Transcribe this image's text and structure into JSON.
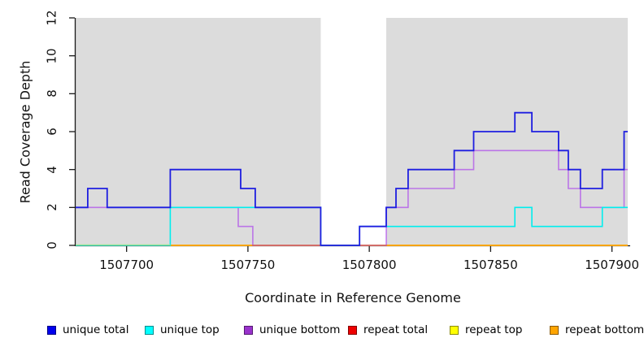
{
  "chart_data": {
    "type": "line",
    "subtype": "step-coverage-plot",
    "title": "",
    "xlabel": "Coordinate in Reference Genome",
    "ylabel": "Read Coverage Depth",
    "xlim": [
      1507679,
      1507906.5
    ],
    "ylim": [
      0,
      12
    ],
    "x_ticks": [
      1507700,
      1507750,
      1507800,
      1507850,
      1507900
    ],
    "x_tick_labels": [
      "1507700",
      "1507750",
      "1507800",
      "1507850",
      "1507900"
    ],
    "y_ticks": [
      0,
      2,
      4,
      6,
      8,
      10,
      12
    ],
    "y_tick_labels": [
      "0",
      "2",
      "4",
      "6",
      "8",
      "10",
      "12"
    ],
    "grid": "off",
    "legend_position": "bottom",
    "shade_color": "#dcdcdc",
    "shaded_regions": [
      {
        "name": "left-shaded-region",
        "x0": 1507679,
        "x1": 1507780
      },
      {
        "name": "right-shaded-region",
        "x0": 1507807,
        "x1": 1507906.5
      }
    ],
    "zero_line_blend": {
      "note": "light-green segment on the zero line left of 1507718",
      "x0": 1507679,
      "x1": 1507718,
      "y": 0,
      "color": "#98e698"
    },
    "series": [
      {
        "name": "repeat total",
        "color": "#ee0000",
        "line_color": "#ee0000",
        "line_opacity": 1,
        "steps": [
          [
            1507718,
            0
          ]
        ],
        "x_end": 1507906.5
      },
      {
        "name": "repeat top",
        "color": "#ffff00",
        "line_color": "#ffff00",
        "line_opacity": 1,
        "steps": [
          [
            1507718,
            0
          ]
        ],
        "x_end": 1507906.5
      },
      {
        "name": "repeat bottom",
        "color": "#ffa500",
        "line_color": "#ffa500",
        "line_opacity": 1,
        "steps": [
          [
            1507718,
            0
          ]
        ],
        "x_end": 1507906.5
      },
      {
        "name": "unique bottom",
        "color": "#9932cc",
        "line_color": "#a020f0",
        "line_opacity": 0.55,
        "steps": [
          [
            1507679,
            2
          ],
          [
            1507746,
            1
          ],
          [
            1507752,
            0
          ],
          [
            1507807,
            2
          ],
          [
            1507816,
            3
          ],
          [
            1507835,
            4
          ],
          [
            1507843,
            5
          ],
          [
            1507878,
            4
          ],
          [
            1507882,
            3
          ],
          [
            1507887,
            2
          ],
          [
            1507905,
            4
          ]
        ],
        "x_end": 1507906.5
      },
      {
        "name": "unique top",
        "color": "#00ffff",
        "line_color": "#00eeee",
        "line_opacity": 1,
        "steps": [
          [
            1507679,
            0
          ],
          [
            1507718,
            2
          ],
          [
            1507780,
            0
          ],
          [
            1507796,
            1
          ],
          [
            1507860,
            2
          ],
          [
            1507867,
            1
          ],
          [
            1507896,
            2
          ]
        ],
        "x_end": 1507906.5
      },
      {
        "name": "unique total",
        "color": "#0000ee",
        "line_color": "#1e1ee0",
        "line_opacity": 1,
        "steps": [
          [
            1507679,
            2
          ],
          [
            1507684,
            3
          ],
          [
            1507692,
            2
          ],
          [
            1507718,
            4
          ],
          [
            1507747,
            3
          ],
          [
            1507753,
            2
          ],
          [
            1507780,
            0
          ],
          [
            1507796,
            1
          ],
          [
            1507807,
            2
          ],
          [
            1507811,
            3
          ],
          [
            1507816,
            4
          ],
          [
            1507835,
            5
          ],
          [
            1507843,
            6
          ],
          [
            1507860,
            7
          ],
          [
            1507867,
            6
          ],
          [
            1507878,
            5
          ],
          [
            1507882,
            4
          ],
          [
            1507887,
            3
          ],
          [
            1507896,
            4
          ],
          [
            1507905,
            6
          ]
        ],
        "x_end": 1507906.5
      }
    ],
    "legend_order": [
      "unique total",
      "unique top",
      "unique bottom",
      "repeat total",
      "repeat top",
      "repeat bottom"
    ]
  }
}
